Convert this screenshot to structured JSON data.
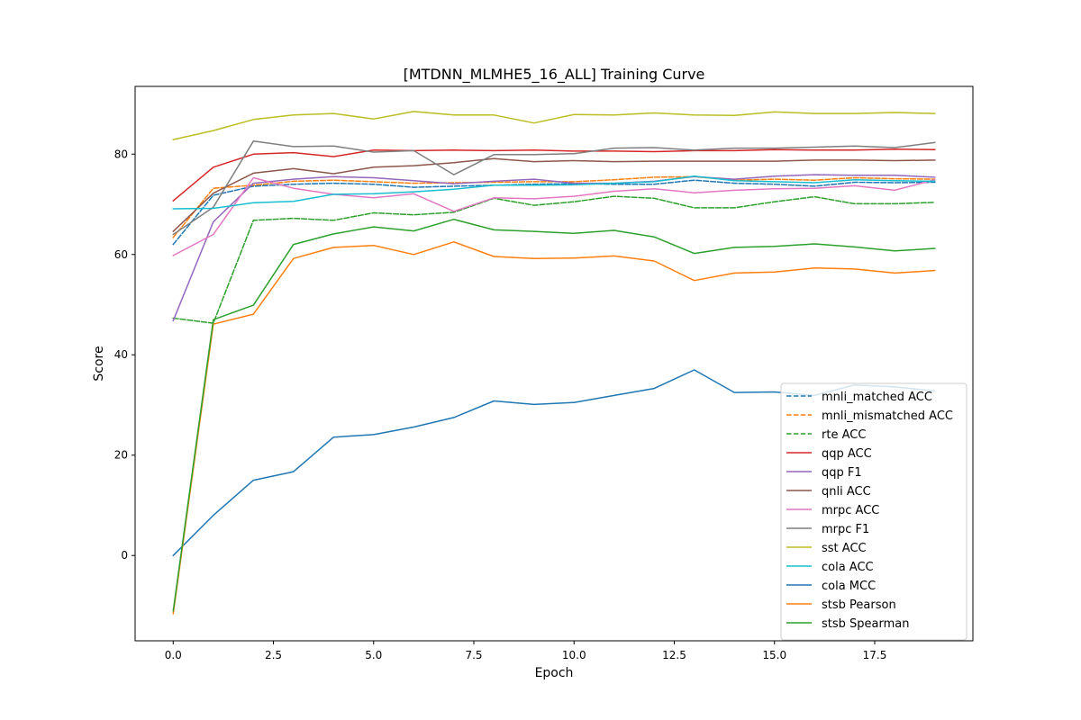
{
  "chart_data": {
    "type": "line",
    "title": "[MTDNN_MLMHE5_16_ALL] Training Curve",
    "xlabel": "Epoch",
    "ylabel": "Score",
    "xlim": [
      -0.95,
      19.95
    ],
    "ylim": [
      -17,
      93.5
    ],
    "xticks": [
      0.0,
      2.5,
      5.0,
      7.5,
      10.0,
      12.5,
      15.0,
      17.5
    ],
    "xtick_labels": [
      "0.0",
      "2.5",
      "5.0",
      "7.5",
      "10.0",
      "12.5",
      "15.0",
      "17.5"
    ],
    "yticks": [
      0,
      20,
      40,
      60,
      80
    ],
    "ytick_labels": [
      "0",
      "20",
      "40",
      "60",
      "80"
    ],
    "grid": false,
    "legend_position": "lower-right",
    "x": [
      0,
      1,
      2,
      3,
      4,
      5,
      6,
      7,
      8,
      9,
      10,
      11,
      12,
      13,
      14,
      15,
      16,
      17,
      18,
      19
    ],
    "series": [
      {
        "name": "mnli_matched ACC",
        "color": "#1f77b4",
        "dash": true,
        "values": [
          62.0,
          71.8,
          73.6,
          74.0,
          74.2,
          74.0,
          73.4,
          73.6,
          73.8,
          74.0,
          74.1,
          74.0,
          74.0,
          74.8,
          74.2,
          74.0,
          73.6,
          74.4,
          74.3,
          74.4
        ]
      },
      {
        "name": "mnli_mismatched ACC",
        "color": "#ff7f0e",
        "dash": true,
        "values": [
          63.4,
          73.2,
          73.8,
          74.6,
          74.8,
          74.5,
          74.2,
          74.3,
          74.4,
          74.5,
          74.5,
          74.9,
          75.4,
          75.5,
          74.8,
          75.0,
          74.8,
          75.3,
          75.1,
          75.0
        ]
      },
      {
        "name": "rte ACC",
        "color": "#2ca02c",
        "dash": true,
        "values": [
          47.3,
          46.3,
          66.8,
          67.2,
          66.8,
          68.3,
          67.9,
          68.4,
          71.2,
          69.8,
          70.5,
          71.6,
          71.2,
          69.3,
          69.3,
          70.5,
          71.5,
          70.1,
          70.1,
          70.4
        ]
      },
      {
        "name": "qqp ACC",
        "color": "#d62728",
        "dash": false,
        "values": [
          70.7,
          77.4,
          80.0,
          80.3,
          79.5,
          80.8,
          80.7,
          80.8,
          80.7,
          80.8,
          80.6,
          80.6,
          80.5,
          80.7,
          80.7,
          80.9,
          80.8,
          80.8,
          81.0,
          80.9
        ]
      },
      {
        "name": "qqp F1",
        "color": "#9467bd",
        "dash": false,
        "values": [
          46.8,
          66.5,
          74.2,
          75.0,
          75.5,
          75.3,
          74.7,
          74.1,
          74.6,
          75.0,
          74.2,
          74.2,
          74.6,
          75.5,
          75.0,
          75.6,
          75.9,
          75.8,
          75.8,
          75.4
        ]
      },
      {
        "name": "qnli ACC",
        "color": "#8c564b",
        "dash": false,
        "values": [
          64.6,
          72.2,
          76.2,
          77.1,
          76.1,
          77.4,
          77.7,
          78.3,
          79.1,
          78.5,
          78.7,
          78.5,
          78.6,
          78.6,
          78.6,
          78.6,
          78.8,
          78.8,
          78.7,
          78.8
        ]
      },
      {
        "name": "mrpc ACC",
        "color": "#e377c2",
        "dash": false,
        "values": [
          59.8,
          64.0,
          75.3,
          73.2,
          72.0,
          71.3,
          72.1,
          68.6,
          71.3,
          71.1,
          71.6,
          72.6,
          73.1,
          72.3,
          72.8,
          73.1,
          73.2,
          73.7,
          72.8,
          74.9
        ]
      },
      {
        "name": "mrpc F1",
        "color": "#7f7f7f",
        "dash": false,
        "values": [
          64.0,
          69.4,
          82.6,
          81.5,
          81.6,
          80.4,
          80.7,
          75.9,
          79.9,
          79.9,
          80.1,
          81.2,
          81.3,
          80.8,
          81.2,
          81.2,
          81.4,
          81.6,
          81.3,
          82.3
        ]
      },
      {
        "name": "sst ACC",
        "color": "#bcbd22",
        "dash": false,
        "values": [
          82.9,
          84.7,
          86.9,
          87.8,
          88.1,
          87.0,
          88.5,
          87.8,
          87.8,
          86.2,
          87.9,
          87.8,
          88.2,
          87.8,
          87.7,
          88.4,
          88.1,
          88.1,
          88.3,
          88.1
        ]
      },
      {
        "name": "cola ACC",
        "color": "#17becf",
        "dash": false,
        "values": [
          69.1,
          69.2,
          70.3,
          70.6,
          72.0,
          72.1,
          72.5,
          73.0,
          73.8,
          73.8,
          73.9,
          74.2,
          74.5,
          75.6,
          74.7,
          74.5,
          74.3,
          74.9,
          74.7,
          74.6
        ]
      },
      {
        "name": "cola MCC",
        "color": "#1f77b4",
        "dash": false,
        "values": [
          0.0,
          8.0,
          15.0,
          16.7,
          23.6,
          24.1,
          25.6,
          27.5,
          30.8,
          30.1,
          30.5,
          31.9,
          33.3,
          37.0,
          32.5,
          32.6,
          31.9,
          34.0,
          33.6,
          32.8
        ]
      },
      {
        "name": "stsb Pearson",
        "color": "#ff7f0e",
        "dash": false,
        "values": [
          -11.6,
          46.1,
          48.1,
          59.2,
          61.4,
          61.8,
          60.0,
          62.5,
          59.6,
          59.2,
          59.3,
          59.7,
          58.7,
          54.8,
          56.3,
          56.5,
          57.3,
          57.1,
          56.3,
          56.8
        ]
      },
      {
        "name": "stsb Spearman",
        "color": "#2ca02c",
        "dash": false,
        "values": [
          -11.0,
          47.0,
          49.9,
          62.0,
          64.1,
          65.5,
          64.7,
          67.0,
          64.9,
          64.6,
          64.2,
          64.8,
          63.5,
          60.2,
          61.4,
          61.6,
          62.1,
          61.5,
          60.7,
          61.2
        ]
      }
    ]
  }
}
